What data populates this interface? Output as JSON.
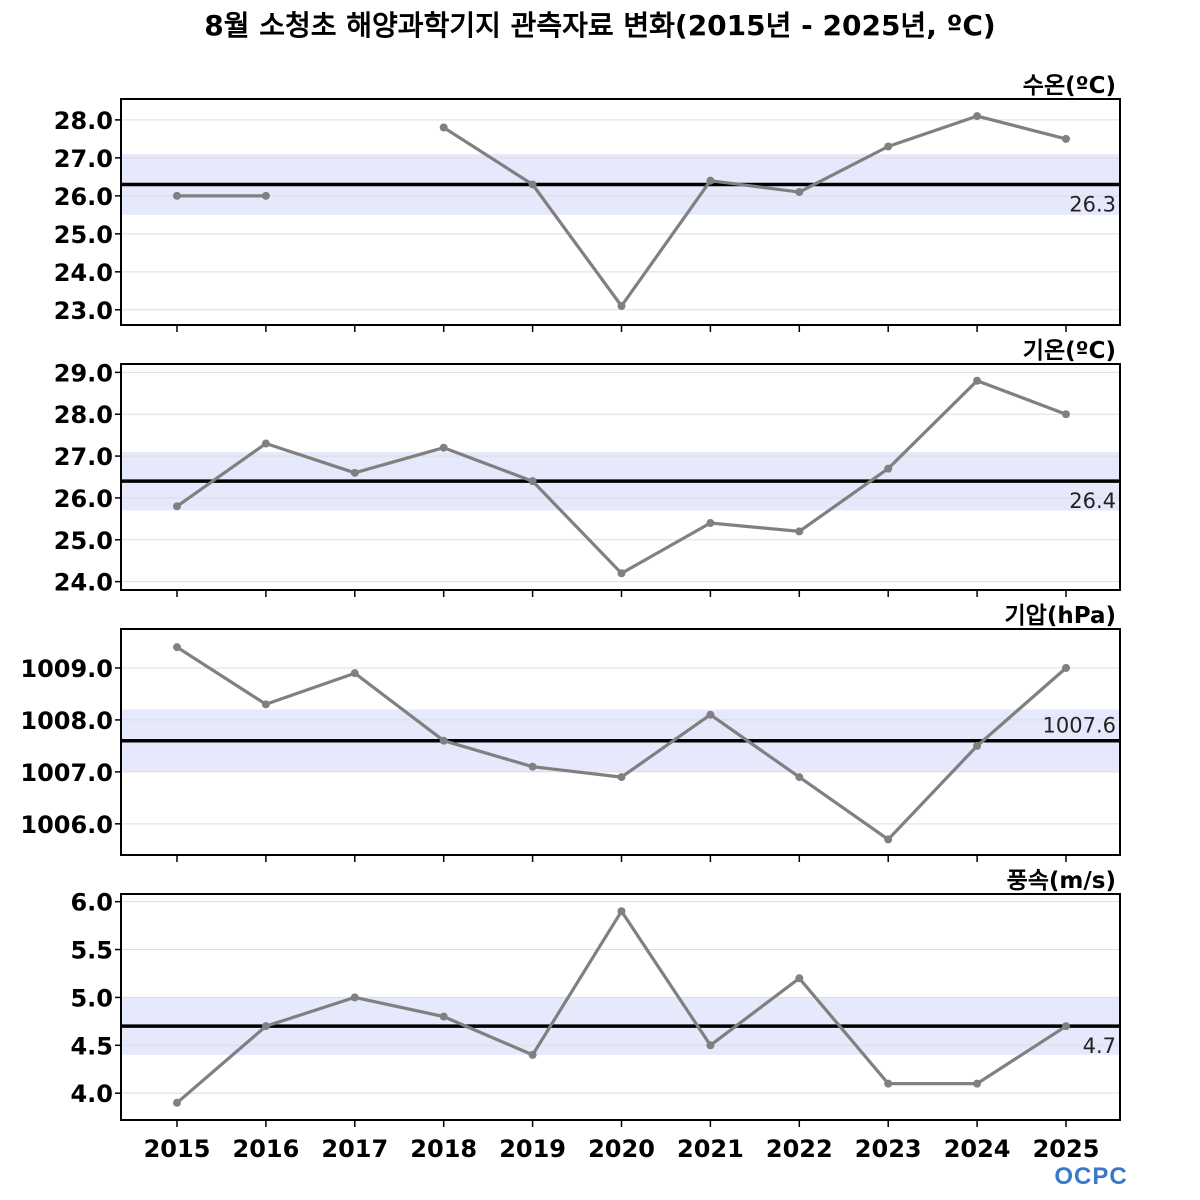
{
  "title": "8월 소청초 해양과학기지 관측자료 변화(2015년 - 2025년, ºC)",
  "logo_text": "OCPC",
  "colors": {
    "line": "#808080",
    "marker": "#808080",
    "mean_line": "#000000",
    "band": "#E6E9FC",
    "grid": "#DDDDDD",
    "logo": "#3A78C8"
  },
  "chart_data": [
    {
      "type": "line",
      "title": "수온(ºC)",
      "x": [
        2015,
        2016,
        2017,
        2018,
        2019,
        2020,
        2021,
        2022,
        2023,
        2024,
        2025
      ],
      "series": [
        {
          "values": [
            26.0,
            26.0,
            null,
            27.8,
            26.3,
            23.1,
            26.4,
            26.1,
            27.3,
            28.1,
            27.5
          ]
        }
      ],
      "mean": 26.3,
      "mean_label": "26.3",
      "band": [
        25.5,
        27.1
      ],
      "ylim": [
        22.6,
        28.55
      ],
      "yticks": [
        23.0,
        24.0,
        25.0,
        26.0,
        27.0,
        28.0
      ],
      "ytick_labels": [
        "23.0",
        "24.0",
        "25.0",
        "26.0",
        "27.0",
        "28.0"
      ],
      "grid": true
    },
    {
      "type": "line",
      "title": "기온(ºC)",
      "x": [
        2015,
        2016,
        2017,
        2018,
        2019,
        2020,
        2021,
        2022,
        2023,
        2024,
        2025
      ],
      "series": [
        {
          "values": [
            25.8,
            27.3,
            26.6,
            27.2,
            26.4,
            24.2,
            25.4,
            25.2,
            26.7,
            28.8,
            28.0
          ]
        }
      ],
      "mean": 26.4,
      "mean_label": "26.4",
      "band": [
        25.7,
        27.1
      ],
      "ylim": [
        23.8,
        29.2
      ],
      "yticks": [
        24.0,
        25.0,
        26.0,
        27.0,
        28.0,
        29.0
      ],
      "ytick_labels": [
        "24.0",
        "25.0",
        "26.0",
        "27.0",
        "28.0",
        "29.0"
      ],
      "grid": true
    },
    {
      "type": "line",
      "title": "기압(hPa)",
      "x": [
        2015,
        2016,
        2017,
        2018,
        2019,
        2020,
        2021,
        2022,
        2023,
        2024,
        2025
      ],
      "series": [
        {
          "values": [
            1009.4,
            1008.3,
            1008.9,
            1007.6,
            1007.1,
            1006.9,
            1008.1,
            1006.9,
            1005.7,
            1007.5,
            1009.0
          ]
        }
      ],
      "mean": 1007.6,
      "mean_label": "1007.6",
      "band": [
        1007.0,
        1008.2
      ],
      "ylim": [
        1005.4,
        1009.75
      ],
      "yticks": [
        1006.0,
        1007.0,
        1008.0,
        1009.0
      ],
      "ytick_labels": [
        "1006.0",
        "1007.0",
        "1008.0",
        "1009.0"
      ],
      "grid": true
    },
    {
      "type": "line",
      "title": "풍속(m/s)",
      "x": [
        2015,
        2016,
        2017,
        2018,
        2019,
        2020,
        2021,
        2022,
        2023,
        2024,
        2025
      ],
      "series": [
        {
          "values": [
            3.9,
            4.7,
            5.0,
            4.8,
            4.4,
            5.9,
            4.5,
            5.2,
            4.1,
            4.1,
            4.7
          ]
        }
      ],
      "mean": 4.7,
      "mean_label": "4.7",
      "band": [
        4.4,
        5.0
      ],
      "ylim": [
        3.72,
        6.08
      ],
      "yticks": [
        4.0,
        4.5,
        5.0,
        5.5,
        6.0
      ],
      "ytick_labels": [
        "4.0",
        "4.5",
        "5.0",
        "5.5",
        "6.0"
      ],
      "grid": true
    }
  ],
  "x_tick_labels": [
    "2015",
    "2016",
    "2017",
    "2018",
    "2019",
    "2020",
    "2021",
    "2022",
    "2023",
    "2024",
    "2025"
  ]
}
